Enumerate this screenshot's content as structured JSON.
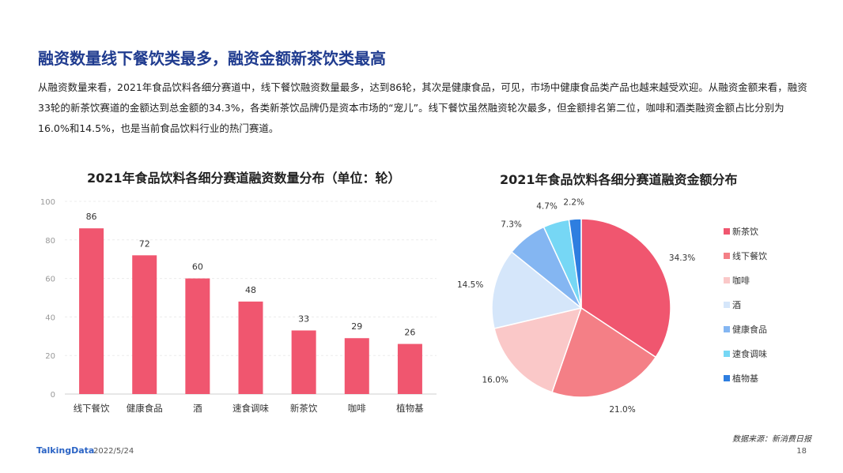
{
  "header": {
    "title": "融资数量线下餐饮类最多，融资金额新茶饮类最高",
    "paragraph": "从融资数量来看，2021年食品饮料各细分赛道中，线下餐饮融资数量最多，达到86轮，其次是健康食品，可见，市场中健康食品类产品也越来越受欢迎。从融资金额来看，融资33轮的新茶饮赛道的金额达到总金额的34.3%，各类新茶饮品牌仍是资本市场的“宠儿”。线下餐饮虽然融资轮次最多，但金额排名第二位，咖啡和酒类融资金额占比分别为16.0%和14.5%，也是当前食品饮料行业的热门赛道。"
  },
  "chart_data": [
    {
      "type": "bar",
      "title": "2021年食品饮料各细分赛道融资数量分布（单位：轮）",
      "categories": [
        "线下餐饮",
        "健康食品",
        "酒",
        "速食调味",
        "新茶饮",
        "咖啡",
        "植物基"
      ],
      "values": [
        86,
        72,
        60,
        48,
        33,
        29,
        26
      ],
      "ylim": [
        0,
        100
      ],
      "yticks": [
        0,
        20,
        40,
        60,
        80,
        100
      ],
      "grid": true,
      "color": "#f0566f"
    },
    {
      "type": "pie",
      "title": "2021年食品饮料各细分赛道融资金额分布",
      "labels": [
        "新茶饮",
        "线下餐饮",
        "咖啡",
        "酒",
        "健康食品",
        "速食调味",
        "植物基"
      ],
      "values": [
        34.3,
        21.0,
        16.0,
        14.5,
        7.3,
        4.7,
        2.2
      ],
      "value_labels": [
        "34.3%",
        "21.0%",
        "16.0%",
        "14.5%",
        "7.3%",
        "4.7%",
        "2.2%"
      ],
      "colors": [
        "#f0566f",
        "#f47f86",
        "#fac8c8",
        "#d5e6fa",
        "#84b6f2",
        "#76d7f5",
        "#2e7ee0"
      ],
      "legend_position": "right"
    }
  ],
  "footer": {
    "source": "数据来源：新消费日报",
    "logo": "TalkingData",
    "date": "2022/5/24",
    "page": "18"
  }
}
